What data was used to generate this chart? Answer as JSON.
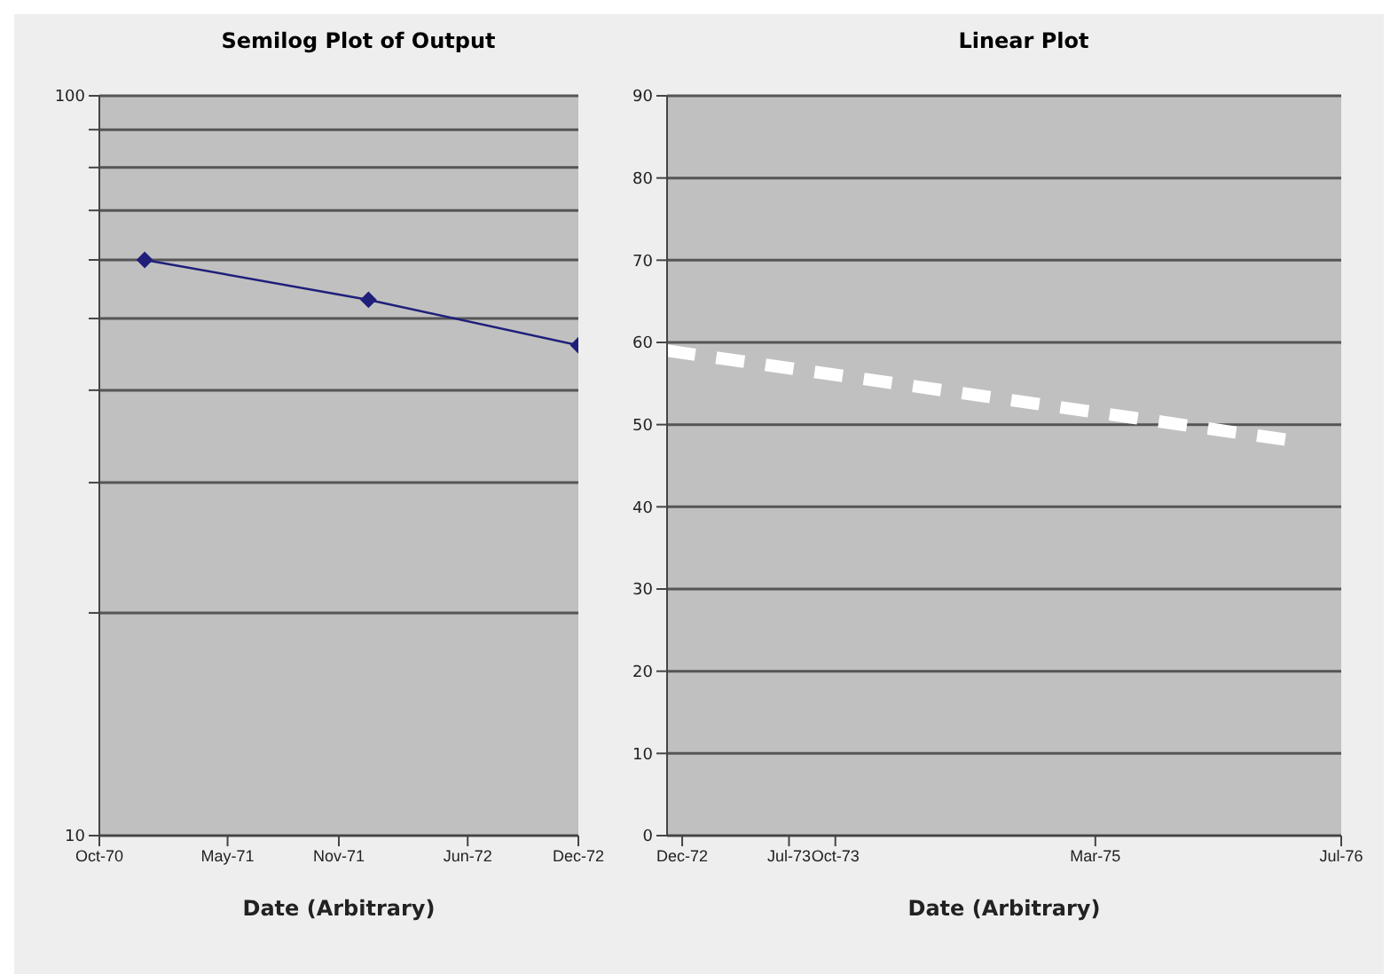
{
  "chart_data": [
    {
      "type": "line",
      "title": "Semilog Plot of Output",
      "xlabel": "Date (Arbitrary)",
      "log": "y",
      "grid": "y",
      "marker": "diamond",
      "line_style": "solid",
      "series": [
        {
          "color": "#1f1f7a",
          "x": [
            "1970-12-15",
            "1971-12-20",
            "1972-12-01"
          ],
          "values": [
            60,
            53,
            46
          ]
        }
      ],
      "xlim": [
        "1970-10-01",
        "1972-12-01"
      ],
      "xticks": [
        {
          "value": "1970-10",
          "label": "Oct-70"
        },
        {
          "value": "1971-05",
          "label": "May-71"
        },
        {
          "value": "1971-11",
          "label": "Nov-71"
        },
        {
          "value": "1972-06",
          "label": "Jun-72"
        },
        {
          "value": "1972-12",
          "label": "Dec-72"
        }
      ],
      "ylim": [
        10,
        100
      ],
      "yticks": [
        10,
        {
          "value": 20,
          "label": null
        },
        {
          "value": 30,
          "label": null
        },
        {
          "value": 40,
          "label": null
        },
        {
          "value": 50,
          "label": null
        },
        {
          "value": 60,
          "label": null
        },
        {
          "value": 70,
          "label": null
        },
        {
          "value": 80,
          "label": null
        },
        {
          "value": 90,
          "label": null
        },
        100
      ]
    },
    {
      "type": "line",
      "title": "Linear Plot",
      "xlabel": "Date (Arbitrary)",
      "grid": "y",
      "marker": "none",
      "line_style": "dashed",
      "series": [
        {
          "color": "#ffffff",
          "x": [
            "1972-11-01",
            "1976-04-01"
          ],
          "values": [
            59,
            48
          ]
        }
      ],
      "xlim": [
        "1972-11-01",
        "1976-07-01"
      ],
      "xticks": [
        {
          "value": "1972-12",
          "label": "Dec-72"
        },
        {
          "value": "1973-07",
          "label": "Jul-73"
        },
        {
          "value": "1973-10",
          "label": "Oct-73"
        },
        {
          "value": "1975-03",
          "label": "Mar-75"
        },
        {
          "value": "1976-07",
          "label": "Jul-76"
        }
      ],
      "ylim": [
        0,
        90
      ],
      "yticks": [
        0,
        10,
        20,
        30,
        40,
        50,
        60,
        70,
        80,
        90
      ]
    }
  ]
}
